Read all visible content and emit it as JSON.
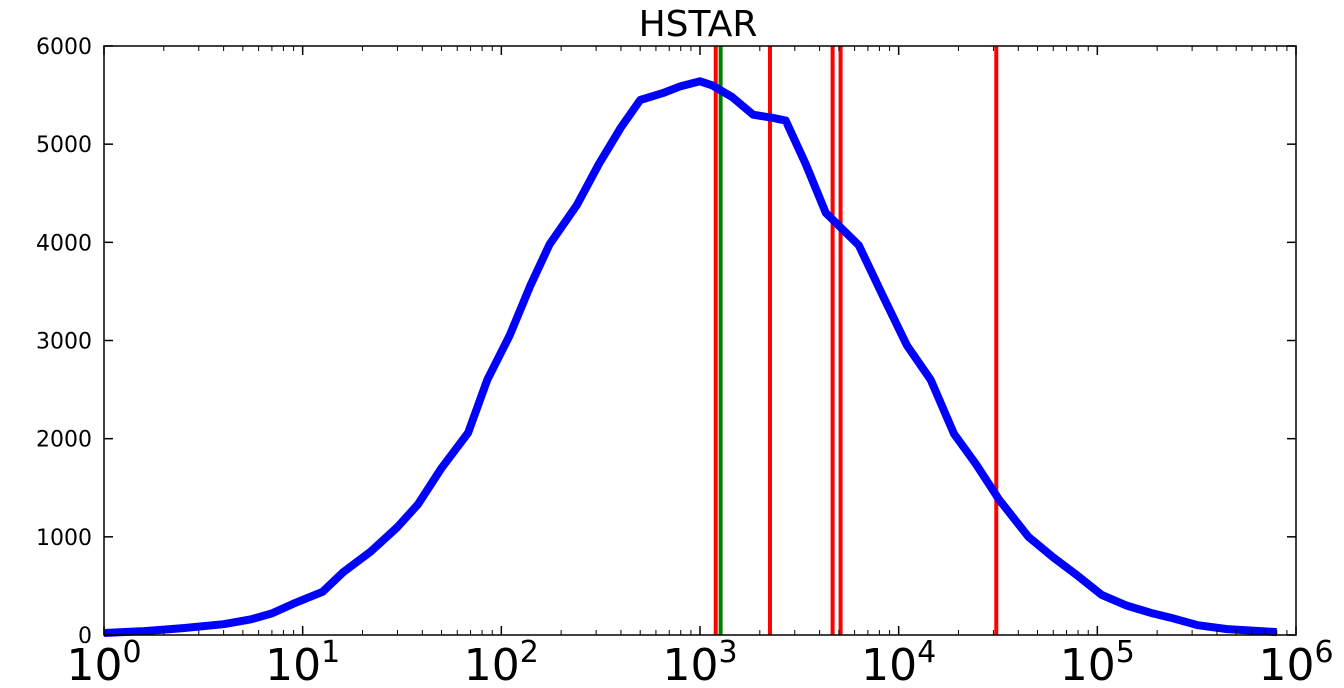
{
  "chart_data": {
    "type": "line",
    "title": "HSTAR",
    "xlabel": "",
    "ylabel": "",
    "x_scale": "log",
    "xlim": [
      1,
      1000000
    ],
    "ylim": [
      0,
      6000
    ],
    "x_ticks": [
      {
        "value": 1,
        "base": "10",
        "exp": "0"
      },
      {
        "value": 10,
        "base": "10",
        "exp": "1"
      },
      {
        "value": 100,
        "base": "10",
        "exp": "2"
      },
      {
        "value": 1000,
        "base": "10",
        "exp": "3"
      },
      {
        "value": 10000,
        "base": "10",
        "exp": "4"
      },
      {
        "value": 100000,
        "base": "10",
        "exp": "5"
      },
      {
        "value": 1000000,
        "base": "10",
        "exp": "6"
      }
    ],
    "y_ticks": [
      0,
      1000,
      2000,
      3000,
      4000,
      5000,
      6000
    ],
    "grid": false,
    "legend": "none",
    "series": [
      {
        "color": "#0000ff",
        "x": [
          1,
          1.6,
          2.5,
          4,
          5.5,
          7,
          9,
          12.6,
          16,
          22,
          30,
          38,
          50,
          68,
          85,
          110,
          140,
          175,
          240,
          310,
          400,
          500,
          650,
          800,
          1000,
          1150,
          1450,
          1850,
          2300,
          2700,
          3400,
          4300,
          6300,
          8300,
          11000,
          14500,
          19000,
          24500,
          32000,
          45000,
          60000,
          80000,
          105000,
          140000,
          190000,
          240000,
          320000,
          450000,
          800000
        ],
        "y": [
          20,
          40,
          70,
          110,
          160,
          220,
          320,
          440,
          640,
          850,
          1100,
          1330,
          1700,
          2060,
          2600,
          3050,
          3560,
          3980,
          4380,
          4800,
          5170,
          5450,
          5520,
          5590,
          5640,
          5600,
          5480,
          5300,
          5270,
          5240,
          4800,
          4300,
          3970,
          3460,
          2950,
          2600,
          2050,
          1740,
          1380,
          1000,
          790,
          600,
          410,
          300,
          220,
          170,
          100,
          60,
          30
        ]
      }
    ],
    "vertical_lines": [
      {
        "x": 1200,
        "color": "#ff0000"
      },
      {
        "x": 1270,
        "color": "#008000"
      },
      {
        "x": 2250,
        "color": "#ff0000"
      },
      {
        "x": 4650,
        "color": "#ff0000"
      },
      {
        "x": 5100,
        "color": "#ff0000"
      },
      {
        "x": 31000,
        "color": "#ff0000"
      }
    ]
  }
}
